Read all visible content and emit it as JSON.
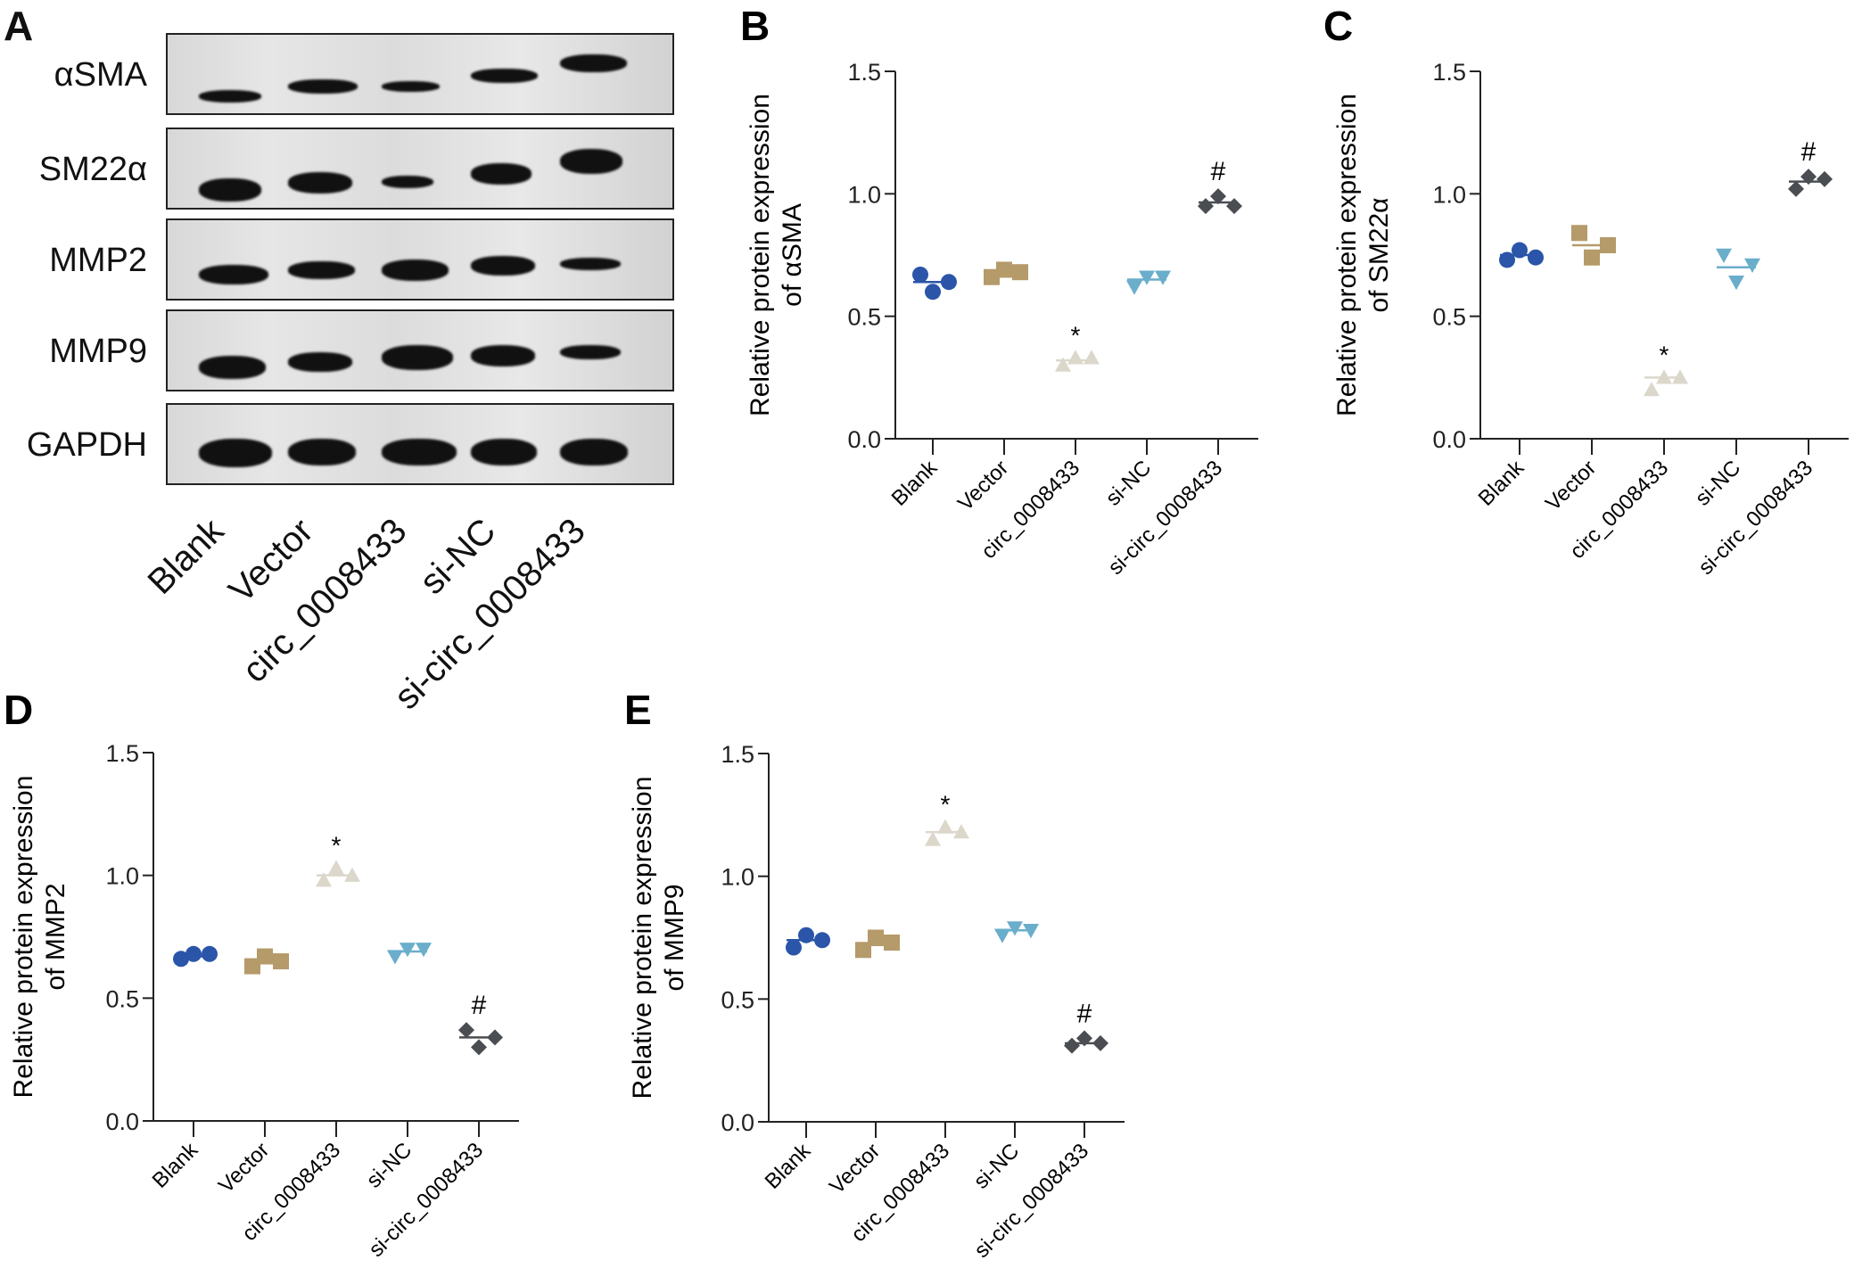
{
  "panels": {
    "A": {
      "letter": "A",
      "proteins": [
        "αSMA",
        "SM22α",
        "MMP2",
        "MMP9",
        "GAPDH"
      ],
      "lanes": [
        "Blank",
        "Vector",
        "circ_0008433",
        "si-NC",
        "si-circ_0008433"
      ]
    }
  },
  "colors": {
    "Blank": "#2a55a8",
    "Vector": "#b59a6a",
    "circ_0008433": "#dcd7cb",
    "si-NC": "#6aaecb",
    "si-circ_0008433": "#4a4d52"
  },
  "chart_data": [
    {
      "panel": "B",
      "type": "scatter",
      "ylabel": "Relative protein expression of αSMA",
      "ylabel_lines": [
        "Relative protein expression",
        "of αSMA"
      ],
      "categories": [
        "Blank",
        "Vector",
        "circ_0008433",
        "si-NC",
        "si-circ_0008433"
      ],
      "markers": [
        "circle",
        "square",
        "triangle-up",
        "triangle-down",
        "diamond"
      ],
      "yticks": [
        "0.0",
        "0.5",
        "1.0",
        "1.5"
      ],
      "ylim": [
        0,
        1.5
      ],
      "series": [
        {
          "name": "Blank",
          "values": [
            0.67,
            0.6,
            0.64
          ],
          "mean": 0.64
        },
        {
          "name": "Vector",
          "values": [
            0.66,
            0.69,
            0.68
          ],
          "mean": 0.68
        },
        {
          "name": "circ_0008433",
          "values": [
            0.3,
            0.33,
            0.33
          ],
          "mean": 0.32
        },
        {
          "name": "si-NC",
          "values": [
            0.62,
            0.66,
            0.66
          ],
          "mean": 0.65
        },
        {
          "name": "si-circ_0008433",
          "values": [
            0.95,
            0.99,
            0.95
          ],
          "mean": 0.965
        }
      ],
      "annotations": [
        {
          "category": "circ_0008433",
          "text": "*"
        },
        {
          "category": "si-circ_0008433",
          "text": "#"
        }
      ]
    },
    {
      "panel": "C",
      "type": "scatter",
      "ylabel": "Relative protein expression of SM22α",
      "ylabel_lines": [
        "Relative protein expression",
        "of SM22α"
      ],
      "categories": [
        "Blank",
        "Vector",
        "circ_0008433",
        "si-NC",
        "si-circ_0008433"
      ],
      "markers": [
        "circle",
        "square",
        "triangle-up",
        "triangle-down",
        "diamond"
      ],
      "yticks": [
        "0.0",
        "0.5",
        "1.0",
        "1.5"
      ],
      "ylim": [
        0,
        1.5
      ],
      "series": [
        {
          "name": "Blank",
          "values": [
            0.73,
            0.77,
            0.74
          ],
          "mean": 0.75
        },
        {
          "name": "Vector",
          "values": [
            0.84,
            0.74,
            0.79
          ],
          "mean": 0.79
        },
        {
          "name": "circ_0008433",
          "values": [
            0.2,
            0.25,
            0.25
          ],
          "mean": 0.25
        },
        {
          "name": "si-NC",
          "values": [
            0.75,
            0.64,
            0.71
          ],
          "mean": 0.7
        },
        {
          "name": "si-circ_0008433",
          "values": [
            1.02,
            1.07,
            1.06
          ],
          "mean": 1.05
        }
      ],
      "annotations": [
        {
          "category": "circ_0008433",
          "text": "*"
        },
        {
          "category": "si-circ_0008433",
          "text": "#"
        }
      ]
    },
    {
      "panel": "D",
      "type": "scatter",
      "ylabel": "Relative protein expression of MMP2",
      "ylabel_lines": [
        "Relative protein expression",
        "of MMP2"
      ],
      "categories": [
        "Blank",
        "Vector",
        "circ_0008433",
        "si-NC",
        "si-circ_0008433"
      ],
      "markers": [
        "circle",
        "square",
        "triangle-up",
        "triangle-down",
        "diamond"
      ],
      "yticks": [
        "0.0",
        "0.5",
        "1.0",
        "1.5"
      ],
      "ylim": [
        0,
        1.5
      ],
      "series": [
        {
          "name": "Blank",
          "values": [
            0.66,
            0.68,
            0.68
          ],
          "mean": 0.67
        },
        {
          "name": "Vector",
          "values": [
            0.63,
            0.67,
            0.65
          ],
          "mean": 0.65
        },
        {
          "name": "circ_0008433",
          "values": [
            0.98,
            1.03,
            1.0
          ],
          "mean": 1.0
        },
        {
          "name": "si-NC",
          "values": [
            0.67,
            0.7,
            0.7
          ],
          "mean": 0.69
        },
        {
          "name": "si-circ_0008433",
          "values": [
            0.37,
            0.3,
            0.34
          ],
          "mean": 0.34
        }
      ],
      "annotations": [
        {
          "category": "circ_0008433",
          "text": "*"
        },
        {
          "category": "si-circ_0008433",
          "text": "#"
        }
      ]
    },
    {
      "panel": "E",
      "type": "scatter",
      "ylabel": "Relative protein expression of MMP9",
      "ylabel_lines": [
        "Relative protein expression",
        "of MMP9"
      ],
      "categories": [
        "Blank",
        "Vector",
        "circ_0008433",
        "si-NC",
        "si-circ_0008433"
      ],
      "markers": [
        "circle",
        "square",
        "triangle-up",
        "triangle-down",
        "diamond"
      ],
      "yticks": [
        "0.0",
        "0.5",
        "1.0",
        "1.5"
      ],
      "ylim": [
        0,
        1.5
      ],
      "series": [
        {
          "name": "Blank",
          "values": [
            0.71,
            0.76,
            0.74
          ],
          "mean": 0.74
        },
        {
          "name": "Vector",
          "values": [
            0.7,
            0.75,
            0.73
          ],
          "mean": 0.72
        },
        {
          "name": "circ_0008433",
          "values": [
            1.15,
            1.2,
            1.18
          ],
          "mean": 1.18
        },
        {
          "name": "si-NC",
          "values": [
            0.76,
            0.79,
            0.78
          ],
          "mean": 0.78
        },
        {
          "name": "si-circ_0008433",
          "values": [
            0.31,
            0.34,
            0.32
          ],
          "mean": 0.32
        }
      ],
      "annotations": [
        {
          "category": "circ_0008433",
          "text": "*"
        },
        {
          "category": "si-circ_0008433",
          "text": "#"
        }
      ]
    }
  ]
}
